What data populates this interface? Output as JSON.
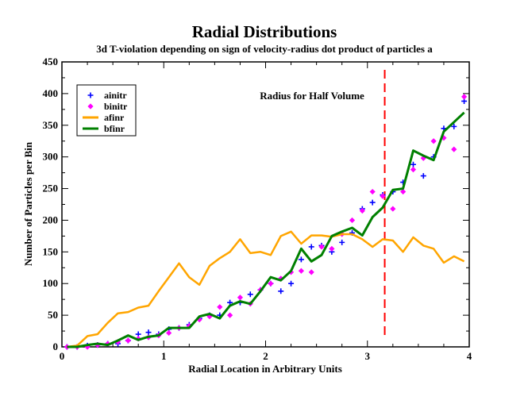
{
  "chart_data": {
    "type": "scatter",
    "title": "Radial Distributions",
    "subtitle": "3d T-violation depending on sign of velocity-radius dot product of particles a",
    "xlabel": "Radial Location in Arbitrary Units",
    "ylabel": "Number of Particles per Bin",
    "xlim": [
      0,
      4
    ],
    "ylim": [
      0,
      450
    ],
    "xticks": [
      0,
      1,
      2,
      3,
      4
    ],
    "yticks": [
      0,
      50,
      100,
      150,
      200,
      250,
      300,
      350,
      400,
      450
    ],
    "x_tick_labels": [
      "0",
      "1",
      "2",
      "3",
      "4"
    ],
    "y_tick_labels": [
      "0",
      "50",
      "100",
      "150",
      "200",
      "250",
      "300",
      "350",
      "400",
      "450"
    ],
    "legend_position": "top-left",
    "colors": {
      "ainitr": "#0000ff",
      "binitr": "#ff00ff",
      "afinr": "#ffa500",
      "bfinr": "#008000",
      "halfline": "#ff0000",
      "annotation": "#ff0000"
    },
    "annotation": {
      "text": "Radius for Half Volume",
      "x": 3.17
    },
    "series": [
      {
        "name": "ainitr",
        "style": "plus",
        "x": [
          0.05,
          0.15,
          0.25,
          0.35,
          0.45,
          0.55,
          0.65,
          0.75,
          0.85,
          0.95,
          1.05,
          1.15,
          1.25,
          1.35,
          1.45,
          1.55,
          1.65,
          1.75,
          1.85,
          1.95,
          2.05,
          2.15,
          2.25,
          2.35,
          2.45,
          2.55,
          2.65,
          2.75,
          2.85,
          2.95,
          3.05,
          3.15,
          3.25,
          3.35,
          3.45,
          3.55,
          3.65,
          3.75,
          3.85,
          3.95
        ],
        "y": [
          0,
          0,
          2,
          3,
          5,
          5,
          10,
          20,
          23,
          20,
          28,
          30,
          35,
          45,
          50,
          50,
          70,
          70,
          83,
          90,
          100,
          88,
          100,
          138,
          158,
          160,
          150,
          165,
          180,
          218,
          228,
          240,
          245,
          260,
          288,
          270,
          300,
          345,
          348,
          388
        ]
      },
      {
        "name": "binitr",
        "style": "diamond",
        "x": [
          0.05,
          0.15,
          0.25,
          0.35,
          0.45,
          0.55,
          0.65,
          0.75,
          0.85,
          0.95,
          1.05,
          1.15,
          1.25,
          1.35,
          1.45,
          1.55,
          1.65,
          1.75,
          1.85,
          1.95,
          2.05,
          2.15,
          2.25,
          2.35,
          2.45,
          2.55,
          2.65,
          2.75,
          2.85,
          2.95,
          3.05,
          3.15,
          3.25,
          3.35,
          3.45,
          3.55,
          3.65,
          3.75,
          3.85,
          3.95
        ],
        "y": [
          0,
          0,
          0,
          3,
          5,
          8,
          10,
          13,
          15,
          18,
          22,
          30,
          33,
          43,
          48,
          63,
          50,
          78,
          68,
          90,
          100,
          108,
          118,
          120,
          118,
          158,
          155,
          178,
          200,
          215,
          245,
          238,
          218,
          245,
          280,
          298,
          325,
          330,
          312,
          395
        ]
      },
      {
        "name": "afinr",
        "style": "line",
        "x": [
          0.05,
          0.15,
          0.25,
          0.35,
          0.45,
          0.55,
          0.65,
          0.75,
          0.85,
          0.95,
          1.05,
          1.15,
          1.25,
          1.35,
          1.45,
          1.55,
          1.65,
          1.75,
          1.85,
          1.95,
          2.05,
          2.15,
          2.25,
          2.35,
          2.45,
          2.55,
          2.65,
          2.75,
          2.85,
          2.95,
          3.05,
          3.15,
          3.25,
          3.35,
          3.45,
          3.55,
          3.65,
          3.75,
          3.85,
          3.95
        ],
        "y": [
          0,
          2,
          17,
          20,
          38,
          53,
          55,
          62,
          65,
          88,
          110,
          132,
          110,
          98,
          128,
          140,
          150,
          170,
          148,
          150,
          145,
          175,
          182,
          163,
          176,
          176,
          174,
          178,
          178,
          170,
          158,
          170,
          168,
          150,
          173,
          160,
          155,
          133,
          143,
          135
        ]
      },
      {
        "name": "bfinr",
        "style": "line",
        "x": [
          0.05,
          0.15,
          0.25,
          0.35,
          0.45,
          0.55,
          0.65,
          0.75,
          0.85,
          0.95,
          1.05,
          1.15,
          1.25,
          1.35,
          1.45,
          1.55,
          1.65,
          1.75,
          1.85,
          1.95,
          2.05,
          2.15,
          2.25,
          2.35,
          2.45,
          2.55,
          2.65,
          2.75,
          2.85,
          2.95,
          3.05,
          3.15,
          3.25,
          3.35,
          3.45,
          3.55,
          3.65,
          3.75,
          3.85,
          3.95
        ],
        "y": [
          0,
          0,
          3,
          5,
          3,
          10,
          18,
          11,
          16,
          18,
          30,
          30,
          30,
          48,
          52,
          45,
          65,
          72,
          68,
          88,
          110,
          105,
          120,
          155,
          135,
          145,
          175,
          182,
          188,
          176,
          205,
          220,
          248,
          250,
          310,
          302,
          295,
          340,
          355,
          370
        ]
      }
    ]
  }
}
